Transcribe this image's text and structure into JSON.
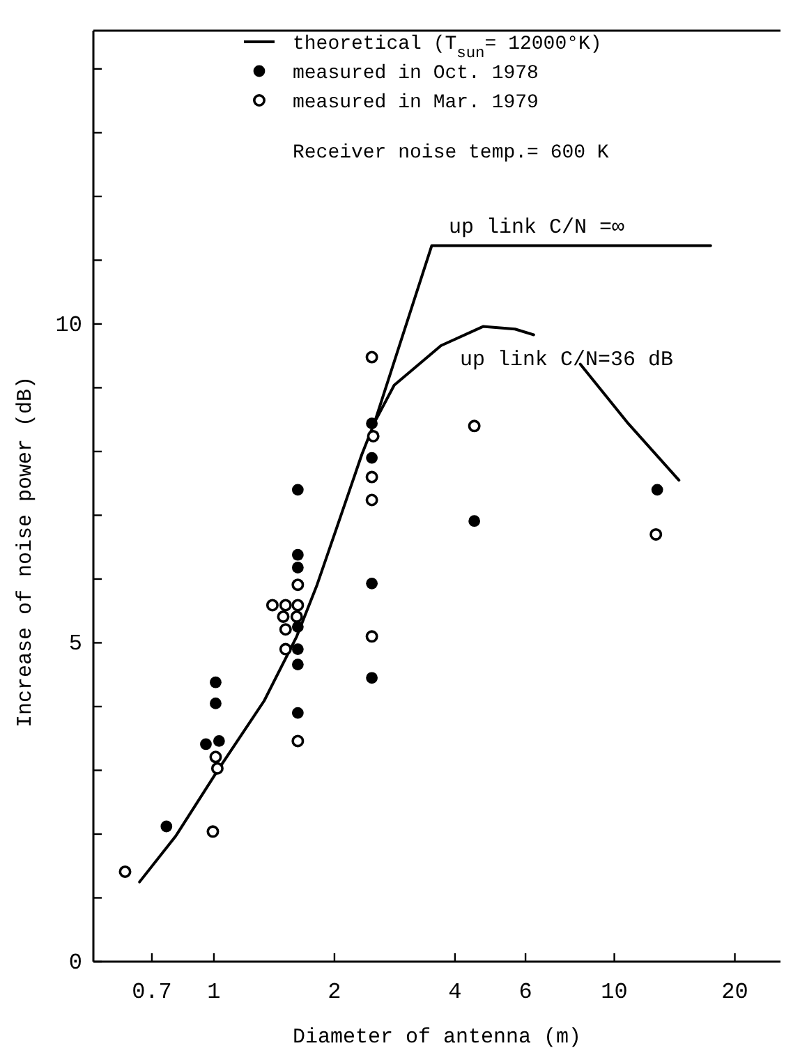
{
  "chart_data": {
    "type": "scatter",
    "xlabel": "Diameter of antenna  (m)",
    "ylabel": "Increase of noise power  (dB)",
    "log": "x",
    "xlim": [
      0.5,
      26
    ],
    "ylim": [
      0,
      14.6
    ],
    "xticks": [
      0.7,
      1,
      2,
      4,
      6,
      10,
      20
    ],
    "yticks": [
      0,
      {
        "value": 1,
        "label": null
      },
      {
        "value": 2,
        "label": null
      },
      {
        "value": 3,
        "label": null
      },
      {
        "value": 4,
        "label": null
      },
      5,
      {
        "value": 6,
        "label": null
      },
      {
        "value": 7,
        "label": null
      },
      {
        "value": 8,
        "label": null
      },
      {
        "value": 9,
        "label": null
      },
      10,
      {
        "value": 11,
        "label": null
      },
      {
        "value": 12,
        "label": null
      },
      {
        "value": 13,
        "label": null
      },
      {
        "value": 14,
        "label": null
      }
    ],
    "legend": "top right",
    "grid": false,
    "series": [
      {
        "name": "theoretical (T$_{sun}$= 12000°K)",
        "type": "line",
        "color": "#000000",
        "line_style": "solid",
        "x": [
          0.652,
          0.803,
          1.02,
          1.335,
          1.61,
          1.81,
          2.02,
          2.34,
          2.52,
          2.82,
          3.69,
          4.7,
          5.65,
          6.29,
          7.2,
          8.22,
          10.76,
          14.5
        ],
        "values": [
          1.25,
          1.97,
          2.99,
          4.09,
          5.1,
          5.91,
          6.78,
          7.95,
          8.46,
          9.04,
          9.66,
          9.96,
          9.92,
          9.83,
          null,
          9.37,
          8.46,
          7.55
        ]
      },
      {
        "type": "line",
        "color": "#000000",
        "line_style": "solid",
        "x": [
          2.52,
          3.5,
          17.4
        ],
        "values": [
          8.46,
          11.23,
          11.23
        ]
      },
      {
        "name": "measured in Oct. 1978",
        "color": "#000000",
        "marker": "circle",
        "x": [
          1.62,
          1.62,
          1.62,
          1.62,
          1.62,
          1.62,
          1.62,
          2.48,
          2.48,
          2.48,
          2.48,
          1.01,
          1.01,
          0.955,
          1.03,
          0.761,
          4.47,
          12.8
        ],
        "values": [
          7.4,
          6.38,
          6.18,
          5.25,
          4.9,
          4.66,
          3.9,
          8.44,
          7.9,
          5.93,
          4.45,
          4.38,
          4.05,
          3.41,
          3.46,
          2.12,
          6.91,
          7.4
        ]
      },
      {
        "name": "measured in Mar. 1979",
        "color": "#000000",
        "marker": "circle-open",
        "x": [
          0.6,
          0.994,
          1.01,
          1.02,
          1.4,
          1.51,
          1.62,
          1.49,
          1.61,
          1.51,
          1.51,
          1.62,
          1.62,
          2.48,
          2.48,
          2.5,
          2.48,
          2.48,
          4.47,
          12.7
        ],
        "values": [
          1.41,
          2.04,
          3.21,
          3.03,
          5.59,
          5.59,
          5.59,
          5.41,
          5.41,
          5.21,
          4.9,
          5.91,
          3.46,
          5.1,
          9.48,
          8.24,
          7.6,
          7.24,
          8.4,
          6.7
        ]
      }
    ],
    "annotations": [
      "Receiver noise temp.= 600 K",
      "up link C/N =∞",
      "up link C/N=36 dB"
    ]
  }
}
